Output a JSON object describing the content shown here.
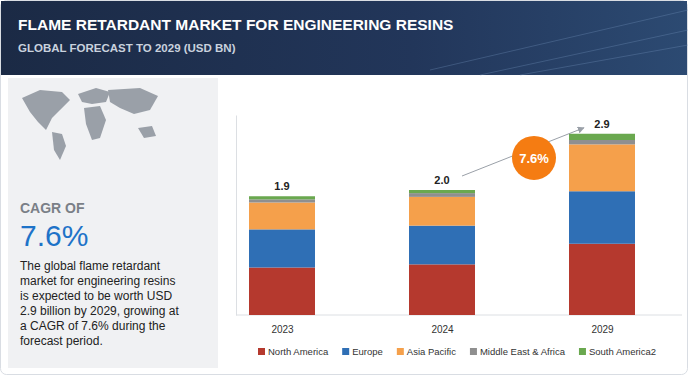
{
  "chart_data": {
    "type": "bar",
    "stacked": true,
    "title": "FLAME RETARDANT MARKET FOR ENGINEERING RESINS",
    "subtitle": "GLOBAL FORECAST TO 2029 (USD BN)",
    "categories": [
      "2023",
      "2024",
      "2029"
    ],
    "series": [
      {
        "name": "North America",
        "color": "#b5392e",
        "values": [
          0.76,
          0.81,
          1.14
        ]
      },
      {
        "name": "Europe",
        "color": "#2f6fb5",
        "values": [
          0.61,
          0.62,
          0.84
        ]
      },
      {
        "name": "Asia Pacific",
        "color": "#f5a04b",
        "values": [
          0.43,
          0.46,
          0.75
        ]
      },
      {
        "name": "Middle East & Africa",
        "color": "#8f8f8f",
        "values": [
          0.05,
          0.06,
          0.07
        ]
      },
      {
        "name": "South America2",
        "color": "#6aa84f",
        "values": [
          0.05,
          0.05,
          0.1
        ]
      }
    ],
    "totals": [
      1.9,
      2.0,
      2.9
    ],
    "total_labels": [
      "1.9",
      "2.0",
      "2.9"
    ],
    "annotation": "7.6%",
    "ylim": [
      0,
      3.2
    ],
    "tick_labels": "x",
    "legend": "bottom"
  },
  "panel": {
    "heading": "CAGR OF",
    "value": "7.6%",
    "text": [
      "The global flame retardant",
      "market for engineering resins",
      "is expected to be worth USD",
      "2.9 billion by 2029, growing at",
      "a CAGR of 7.6% during the",
      "forecast period."
    ]
  }
}
